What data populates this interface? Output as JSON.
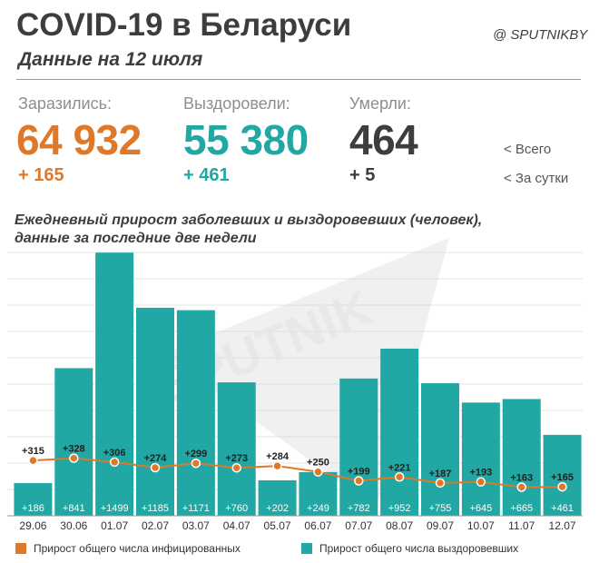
{
  "header": {
    "title": "COVID-19 в Беларуси",
    "subtitle": "Данные на 12 июля",
    "source": "@ SPUTNIKBY"
  },
  "stats": {
    "infected": {
      "label": "Заразились:",
      "total": "64 932",
      "delta": "+ 165",
      "color": "#e0782a"
    },
    "recovered": {
      "label": "Выздоровели:",
      "total": "55 380",
      "delta": "+ 461",
      "color": "#21a7a4"
    },
    "died": {
      "label": "Умерли:",
      "total": "464",
      "delta": "+ 5",
      "color": "#3d3d3d"
    },
    "legend_total": "<  Всего",
    "legend_daily": "<  За сутки"
  },
  "chart_data": {
    "type": "bar",
    "title_line1": "Ежедневный прирост заболевших и выздоровевших (человек),",
    "title_line2": "данные за последние две недели",
    "categories": [
      "29.06",
      "30.06",
      "01.07",
      "02.07",
      "03.07",
      "04.07",
      "05.07",
      "06.07",
      "07.07",
      "08.07",
      "09.07",
      "10.07",
      "11.07",
      "12.07"
    ],
    "series": [
      {
        "name": "Прирост общего числа выздоровевших",
        "type": "bar",
        "color": "#21a7a4",
        "values": [
          186,
          841,
          1499,
          1185,
          1171,
          760,
          202,
          249,
          782,
          952,
          755,
          645,
          665,
          461
        ],
        "labels": [
          "+186",
          "+841",
          "+1499",
          "+1185",
          "+1171",
          "+760",
          "+202",
          "+249",
          "+782",
          "+952",
          "+755",
          "+645",
          "+665",
          "+461"
        ]
      },
      {
        "name": "Прирост общего числа инфицированных",
        "type": "line",
        "color": "#e0782a",
        "values": [
          315,
          328,
          306,
          274,
          299,
          273,
          284,
          250,
          199,
          221,
          187,
          193,
          163,
          165
        ],
        "labels": [
          "+315",
          "+328",
          "+306",
          "+274",
          "+299",
          "+273",
          "+284",
          "+250",
          "+199",
          "+221",
          "+187",
          "+193",
          "+163",
          "+165"
        ]
      }
    ],
    "ylim": [
      0,
      1500
    ],
    "grid": true,
    "legend_position": "bottom",
    "watermark": "SPUTNIK"
  }
}
